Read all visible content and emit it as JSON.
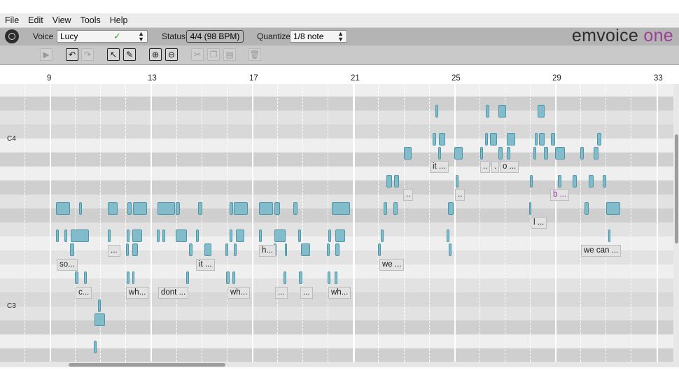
{
  "menu": [
    "File",
    "Edit",
    "View",
    "Tools",
    "Help"
  ],
  "header": {
    "voice_label": "Voice",
    "voice_value": "Lucy",
    "status_label": "Status",
    "status_value": "4/4 (98 BPM)",
    "quantize_label": "Quantize",
    "quantize_value": "1/8 note",
    "brand_main": "emvoice",
    "brand_accent": "one"
  },
  "toolbar": {
    "buttons": [
      {
        "name": "play-button",
        "icon": "play-icon",
        "glyph": "▶",
        "enabled": false
      },
      {
        "name": "undo-button",
        "icon": "undo-icon",
        "glyph": "↶",
        "enabled": true
      },
      {
        "name": "redo-button",
        "icon": "redo-icon",
        "glyph": "↷",
        "enabled": false
      },
      {
        "name": "select-tool-button",
        "icon": "pointer-icon",
        "glyph": "↖",
        "enabled": true
      },
      {
        "name": "pencil-tool-button",
        "icon": "pencil-icon",
        "glyph": "✎",
        "enabled": true
      },
      {
        "name": "zoom-in-button",
        "icon": "zoom-in-icon",
        "glyph": "⊕",
        "enabled": true
      },
      {
        "name": "zoom-out-button",
        "icon": "zoom-out-icon",
        "glyph": "⊖",
        "enabled": true
      },
      {
        "name": "cut-button",
        "icon": "scissors-icon",
        "glyph": "✂",
        "enabled": false
      },
      {
        "name": "copy-button",
        "icon": "copy-icon",
        "glyph": "❐",
        "enabled": false
      },
      {
        "name": "paste-button",
        "icon": "paste-icon",
        "glyph": "▤",
        "enabled": false
      },
      {
        "name": "delete-button",
        "icon": "trash-icon",
        "glyph": "🗑",
        "enabled": false
      }
    ]
  },
  "ruler": {
    "bars": [
      "9",
      "13",
      "17",
      "21",
      "25",
      "29",
      "33"
    ]
  },
  "keyboard": {
    "labels": [
      "C4",
      "C3"
    ]
  },
  "lyrics": [
    "it ...",
    "..",
    ".",
    "o ...",
    "..",
    "..",
    "b ...",
    "l ...",
    "so...",
    "...",
    "h...",
    "it ...",
    "we ...",
    "we can ...",
    "c...",
    "wh...",
    "dont ...",
    "wh...",
    "...",
    "...",
    "wh..."
  ],
  "colors": {
    "note_fill": "#82bbca",
    "note_border": "#4d95a8",
    "accent": "#a13c9b",
    "check": "#3aa33a"
  }
}
